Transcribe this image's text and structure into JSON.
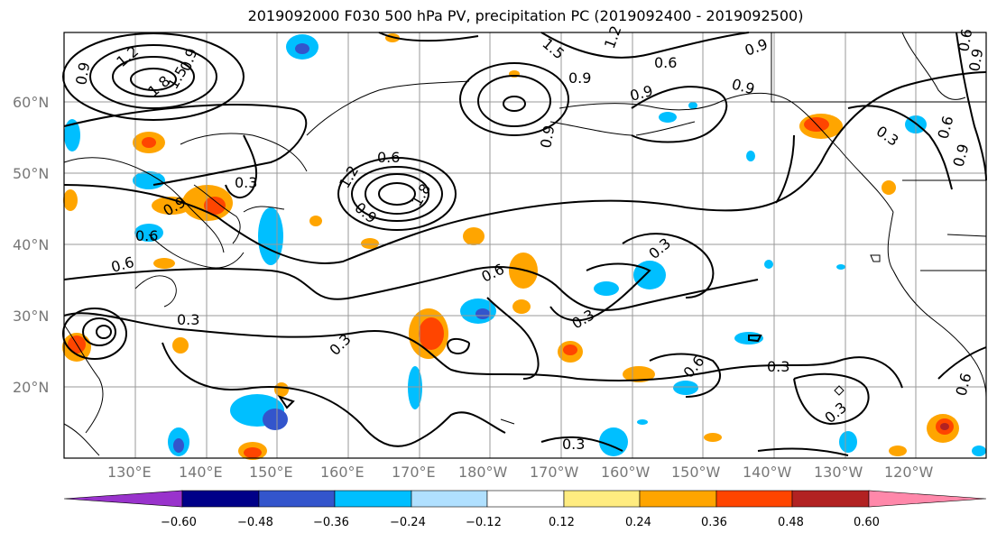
{
  "title": "2019092000 F030 500 hPa PV, precipitation PC (2019092400 - 2019092500)",
  "lat_labels": [
    "60°N",
    "50°N",
    "40°N",
    "30°N",
    "20°N"
  ],
  "lon_labels": [
    "130°E",
    "140°E",
    "150°E",
    "160°E",
    "170°E",
    "180°W",
    "170°W",
    "160°W",
    "150°W",
    "140°W",
    "130°W",
    "120°W"
  ],
  "colorbar": {
    "colors": [
      "#9933cc",
      "#000088",
      "#3355cc",
      "#00bfff",
      "#b0e0ff",
      "#ffffff",
      "#ffec80",
      "#ffa500",
      "#ff4500",
      "#b22222",
      "#ff88aa"
    ],
    "tick_labels": [
      "−0.60",
      "−0.48",
      "−0.36",
      "−0.24",
      "−0.12",
      "0.12",
      "0.24",
      "0.36",
      "0.48",
      "0.60"
    ]
  },
  "contour_labels": [
    "0.3",
    "0.6",
    "0.9",
    "1.2",
    "1.5",
    "1.8"
  ]
}
